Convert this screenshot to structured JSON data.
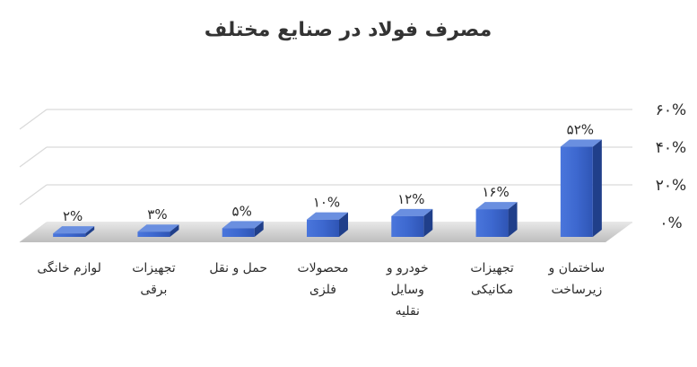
{
  "chart_data": {
    "type": "bar",
    "title": "مصرف فولاد در صنایع مختلف",
    "categories": [
      [
        "ساختمان و",
        "زیرساخت"
      ],
      [
        "تجهیزات",
        "مکانیکی"
      ],
      [
        "خودرو و",
        "وسایل",
        "نقلیه"
      ],
      [
        "محصولات",
        "فلزی"
      ],
      [
        "حمل و نقل"
      ],
      [
        "تجهیزات",
        "برقی"
      ],
      [
        "لوازم خانگی"
      ]
    ],
    "values": [
      52,
      16,
      12,
      10,
      5,
      3,
      2
    ],
    "data_labels": [
      "۵۲%",
      "۱۶%",
      "۱۲%",
      "۱۰%",
      "۵%",
      "۳%",
      "۲%"
    ],
    "y_ticks": [
      0,
      20,
      40,
      60
    ],
    "y_tick_labels": [
      "۰%",
      "۲۰%",
      "۴۰%",
      "۶۰%"
    ],
    "ylim": [
      0,
      60
    ],
    "xlabel": "",
    "ylabel": "",
    "grid": true,
    "legend": "none",
    "colors": {
      "bar_front": "#3a63c8",
      "bar_side": "#203f8a",
      "bar_top": "#6a8fe0",
      "floor": "#d0d0d0",
      "grid": "#d9d9d9"
    }
  }
}
